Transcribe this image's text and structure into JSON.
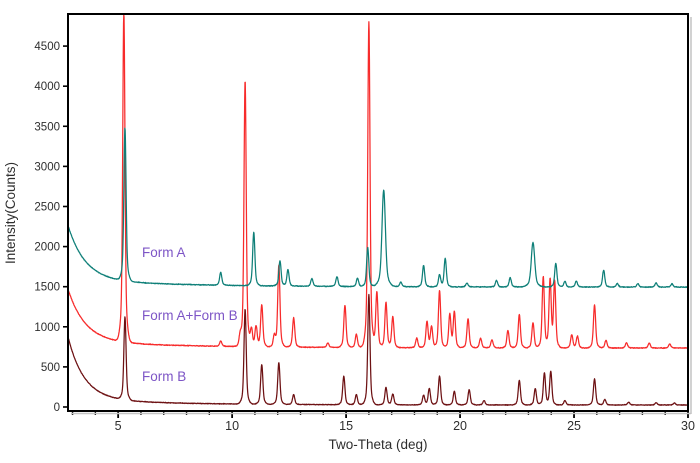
{
  "chart_data": {
    "type": "line",
    "title": "",
    "xlabel": "Two-Theta (deg)",
    "ylabel": "Intensity(Counts)",
    "xlim": [
      2.8,
      30
    ],
    "ylim": [
      -50,
      4900
    ],
    "x_major_ticks": [
      5,
      10,
      15,
      20,
      25,
      30
    ],
    "x_minor_tick_step": 1,
    "y_ticks": [
      0,
      500,
      1000,
      1500,
      2000,
      2500,
      3000,
      3500,
      4000,
      4500
    ],
    "grid": false,
    "legend_position": "none",
    "axis_color": "#000000",
    "annotations": [
      {
        "label": "Form A",
        "x": 6.05,
        "y": 1930,
        "color": "#7d55c6"
      },
      {
        "label": "Form A+Form B",
        "x": 6.05,
        "y": 1140,
        "color": "#7d55c6"
      },
      {
        "label": "Form B",
        "x": 6.05,
        "y": 380,
        "color": "#7d55c6"
      }
    ],
    "series": [
      {
        "name": "Form A+Form B",
        "color": "#f72b2b",
        "baseline": 735,
        "left_decay": [
          [
            650,
            0.75
          ],
          [
            85,
            5
          ]
        ],
        "noise": 6,
        "peaks": [
          [
            5.25,
            4870
          ],
          [
            9.5,
            800
          ],
          [
            10.35,
            855
          ],
          [
            10.57,
            4050
          ],
          [
            10.85,
            950
          ],
          [
            11.05,
            990
          ],
          [
            11.3,
            1260
          ],
          [
            11.85,
            870
          ],
          [
            12.05,
            1750
          ],
          [
            12.7,
            1100
          ],
          [
            14.2,
            790
          ],
          [
            14.95,
            1260
          ],
          [
            15.45,
            900
          ],
          [
            16.0,
            4800
          ],
          [
            16.35,
            1430
          ],
          [
            16.75,
            1300
          ],
          [
            17.05,
            1120
          ],
          [
            18.1,
            855
          ],
          [
            18.55,
            1060
          ],
          [
            18.75,
            1000
          ],
          [
            19.1,
            1450
          ],
          [
            19.55,
            1150
          ],
          [
            19.75,
            1180
          ],
          [
            20.35,
            1100
          ],
          [
            20.9,
            855
          ],
          [
            21.4,
            835
          ],
          [
            22.1,
            950
          ],
          [
            22.6,
            1150
          ],
          [
            23.2,
            1050
          ],
          [
            23.65,
            1625
          ],
          [
            23.95,
            1580
          ],
          [
            24.15,
            1555
          ],
          [
            24.9,
            900
          ],
          [
            25.15,
            880
          ],
          [
            25.9,
            1270
          ],
          [
            26.4,
            830
          ],
          [
            27.3,
            800
          ],
          [
            28.3,
            795
          ],
          [
            29.2,
            785
          ]
        ]
      },
      {
        "name": "Form A",
        "color": "#0e7f78",
        "baseline": 1495,
        "left_decay": [
          [
            680,
            0.75
          ],
          [
            90,
            5
          ]
        ],
        "noise": 6,
        "peaks": [
          [
            5.3,
            3400
          ],
          [
            9.5,
            1655
          ],
          [
            10.95,
            2160
          ],
          [
            12.1,
            1810
          ],
          [
            12.45,
            1700
          ],
          [
            13.5,
            1590
          ],
          [
            14.6,
            1615
          ],
          [
            15.5,
            1600
          ],
          [
            15.95,
            1980
          ],
          [
            16.65,
            2700,
            0.07
          ],
          [
            17.4,
            1550
          ],
          [
            18.4,
            1760
          ],
          [
            19.1,
            1645
          ],
          [
            19.35,
            1850
          ],
          [
            20.3,
            1540
          ],
          [
            21.6,
            1575
          ],
          [
            22.2,
            1610
          ],
          [
            23.2,
            2050,
            0.07
          ],
          [
            24.2,
            1790
          ],
          [
            24.6,
            1565
          ],
          [
            25.1,
            1570
          ],
          [
            26.3,
            1705
          ],
          [
            26.9,
            1540
          ],
          [
            27.8,
            1535
          ],
          [
            28.6,
            1545
          ],
          [
            29.3,
            1535
          ]
        ]
      },
      {
        "name": "Form B",
        "color": "#6d1113",
        "baseline": 25,
        "left_decay": [
          [
            770,
            0.7
          ],
          [
            80,
            4
          ]
        ],
        "noise": 5,
        "peaks": [
          [
            5.3,
            1060
          ],
          [
            10.57,
            1210
          ],
          [
            11.3,
            520
          ],
          [
            12.05,
            545
          ],
          [
            12.7,
            150
          ],
          [
            14.9,
            380
          ],
          [
            15.45,
            150
          ],
          [
            16.0,
            1400
          ],
          [
            16.75,
            240
          ],
          [
            17.05,
            160
          ],
          [
            18.4,
            145
          ],
          [
            18.65,
            230
          ],
          [
            19.1,
            385
          ],
          [
            19.75,
            195
          ],
          [
            20.4,
            215
          ],
          [
            21.05,
            80
          ],
          [
            22.6,
            330
          ],
          [
            23.3,
            230
          ],
          [
            23.7,
            425
          ],
          [
            23.98,
            445
          ],
          [
            24.6,
            80
          ],
          [
            25.9,
            350
          ],
          [
            26.35,
            95
          ],
          [
            27.4,
            60
          ],
          [
            28.6,
            55
          ],
          [
            29.4,
            50
          ]
        ]
      }
    ]
  }
}
